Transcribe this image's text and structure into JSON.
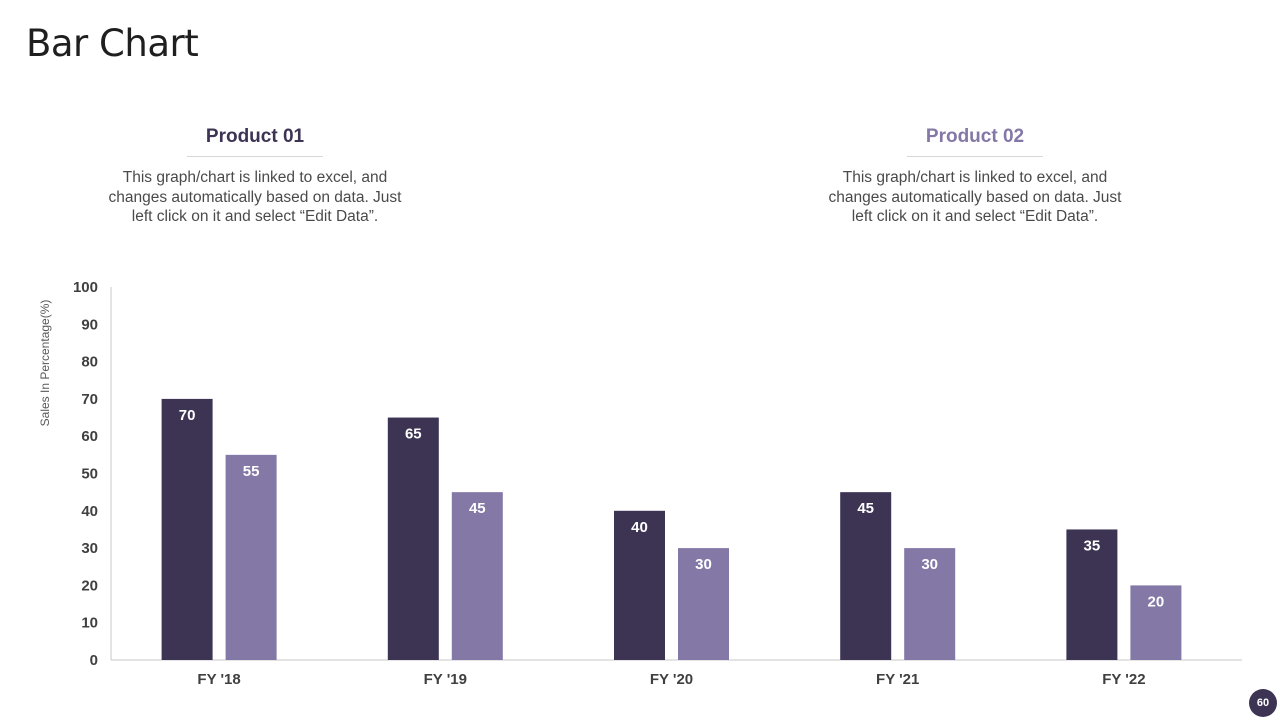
{
  "slide": {
    "title": "Bar Chart",
    "page_number": "60"
  },
  "products": [
    {
      "heading": "Product 01",
      "description": "This graph/chart is linked to excel, and changes automatically based on data. Just left click on it and select “Edit Data”."
    },
    {
      "heading": "Product 02",
      "description": "This graph/chart is linked to excel, and changes automatically based on data. Just left click on it and select “Edit Data”."
    }
  ],
  "colors": {
    "product_01": "#3d3454",
    "product_02": "#8378a6"
  },
  "chart_data": {
    "type": "bar",
    "categories": [
      "FY '18",
      "FY '19",
      "FY '20",
      "FY '21",
      "FY '22"
    ],
    "series": [
      {
        "values": [
          70,
          65,
          40,
          45,
          35
        ],
        "color": "#3d3454"
      },
      {
        "values": [
          55,
          45,
          30,
          30,
          20
        ],
        "color": "#8378a6"
      }
    ],
    "ylabel": "Sales In Percentage(%)",
    "ylim": [
      0,
      100
    ],
    "yticks": [
      0,
      10,
      20,
      30,
      40,
      50,
      60,
      70,
      80,
      90,
      100
    ],
    "data_labels": true,
    "grid": false,
    "legend": "none"
  }
}
